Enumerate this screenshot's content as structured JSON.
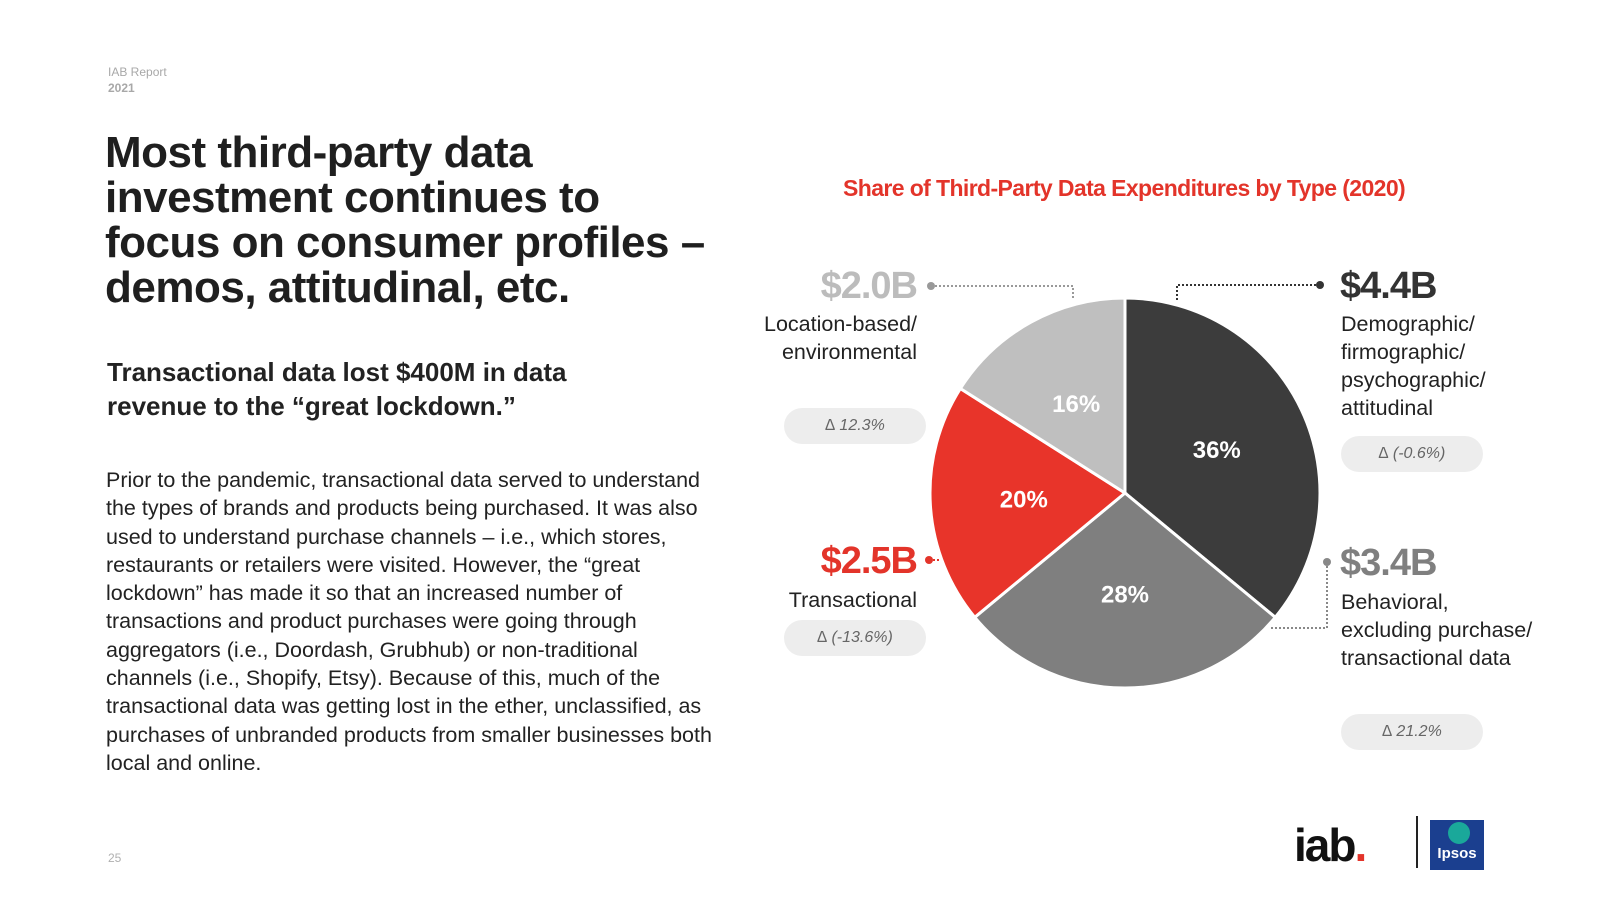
{
  "report": {
    "label": "IAB Report",
    "year": "2021"
  },
  "headline": "Most third-party data investment continues to focus on consumer profiles – demos, attitudinal, etc.",
  "subheadline": "Transactional data lost $400M in data revenue to the “great lockdown.”",
  "body": "Prior to the pandemic, transactional data served to understand the types of brands and products being purchased. It was also used to understand purchase channels – i.e., which stores, restaurants or retailers were visited. However, the “great lockdown” has made it so that an increased number of transactions and product purchases were going through aggregators (i.e., Doordash, Grubhub) or non-traditional channels (i.e., Shopify, Etsy). Because of this, much of the transactional data was getting lost in the ether, unclassified, as purchases of unbranded products from smaller businesses both local and online.",
  "page_number": "25",
  "chart_data": {
    "type": "pie",
    "title": "Share of Third-Party Data Expenditures by Type (2020)",
    "slices": [
      {
        "label": "Demographic/ firmographic/ psychographic/ attitudinal",
        "value": 36,
        "value_label": "36%",
        "amount": "$4.4B",
        "delta": "∆ (-0.6%)",
        "color": "#3c3c3c"
      },
      {
        "label": "Behavioral, excluding purchase/ transactional data",
        "value": 28,
        "value_label": "28%",
        "amount": "$3.4B",
        "delta": "∆ 21.2%",
        "color": "#7f7f7f"
      },
      {
        "label": "Transactional",
        "value": 20,
        "value_label": "20%",
        "amount": "$2.5B",
        "delta": "∆ (-13.6%)",
        "color": "#e8342a"
      },
      {
        "label": "Location-based/ environmental",
        "value": 16,
        "value_label": "16%",
        "amount": "$2.0B",
        "delta": "∆ 12.3%",
        "color": "#bfbfbf"
      }
    ],
    "amount_colors": {
      "demographic": "#333333",
      "behavioral": "#7f7f7f",
      "transactional": "#e3342a",
      "location": "#bcbcbc"
    }
  },
  "logos": {
    "iab": "iab",
    "ipsos": "Ipsos"
  }
}
